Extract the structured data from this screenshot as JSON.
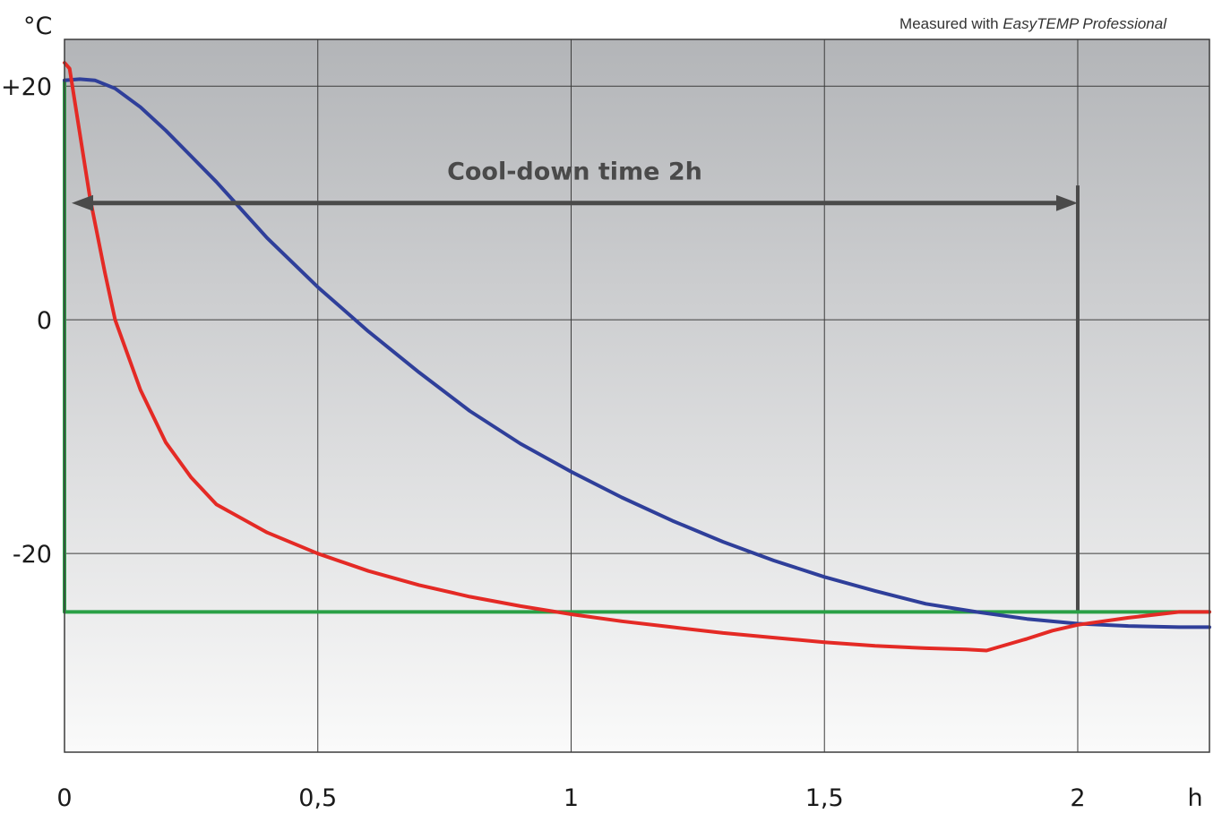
{
  "chart_data": {
    "type": "line",
    "x_unit": "h",
    "y_unit": "°C",
    "note": {
      "prefix": "Measured with ",
      "product": "EasyTEMP Professional"
    },
    "x_ticks": [
      {
        "value": 0,
        "label": "0"
      },
      {
        "value": 0.5,
        "label": "0,5"
      },
      {
        "value": 1,
        "label": "1"
      },
      {
        "value": 1.5,
        "label": "1,5"
      },
      {
        "value": 2,
        "label": "2"
      }
    ],
    "y_ticks": [
      {
        "value": 20,
        "label": "+20"
      },
      {
        "value": 0,
        "label": "0"
      },
      {
        "value": -20,
        "label": "-20"
      }
    ],
    "xlim": [
      0,
      2.26
    ],
    "ylim": [
      -37,
      24
    ],
    "grid": true,
    "annotation": {
      "text": "Cool-down time 2h",
      "x_start": 0,
      "x_end": 2,
      "y": 10
    },
    "marker_line": {
      "x": 2,
      "y_from": -25,
      "y_to": 11.5
    },
    "colors": {
      "background_top": "#b3b5b8",
      "background_bottom": "#fafafa",
      "grid": "#3c3c3c",
      "annotation": "#4a4a4a"
    },
    "series": [
      {
        "color": "#e42a25",
        "points": [
          [
            0,
            22
          ],
          [
            0.01,
            21.5
          ],
          [
            0.03,
            16
          ],
          [
            0.05,
            10.5
          ],
          [
            0.08,
            4
          ],
          [
            0.1,
            0
          ],
          [
            0.15,
            -6
          ],
          [
            0.2,
            -10.5
          ],
          [
            0.25,
            -13.5
          ],
          [
            0.3,
            -15.8
          ],
          [
            0.4,
            -18.2
          ],
          [
            0.5,
            -20
          ],
          [
            0.6,
            -21.5
          ],
          [
            0.7,
            -22.7
          ],
          [
            0.8,
            -23.7
          ],
          [
            0.9,
            -24.5
          ],
          [
            1.0,
            -25.2
          ],
          [
            1.1,
            -25.8
          ],
          [
            1.2,
            -26.3
          ],
          [
            1.3,
            -26.8
          ],
          [
            1.4,
            -27.2
          ],
          [
            1.5,
            -27.6
          ],
          [
            1.6,
            -27.9
          ],
          [
            1.7,
            -28.1
          ],
          [
            1.78,
            -28.2
          ],
          [
            1.82,
            -28.3
          ],
          [
            1.9,
            -27.3
          ],
          [
            1.95,
            -26.6
          ],
          [
            2.0,
            -26.1
          ],
          [
            2.1,
            -25.5
          ],
          [
            2.2,
            -25.0
          ],
          [
            2.26,
            -25.0
          ]
        ]
      },
      {
        "color": "#2f3f9a",
        "points": [
          [
            0,
            20.5
          ],
          [
            0.03,
            20.6
          ],
          [
            0.06,
            20.5
          ],
          [
            0.1,
            19.8
          ],
          [
            0.15,
            18.2
          ],
          [
            0.2,
            16.2
          ],
          [
            0.25,
            14
          ],
          [
            0.3,
            11.8
          ],
          [
            0.35,
            9.4
          ],
          [
            0.4,
            7.0
          ],
          [
            0.5,
            2.8
          ],
          [
            0.6,
            -1.0
          ],
          [
            0.7,
            -4.5
          ],
          [
            0.8,
            -7.8
          ],
          [
            0.9,
            -10.6
          ],
          [
            1.0,
            -13.0
          ],
          [
            1.1,
            -15.2
          ],
          [
            1.2,
            -17.2
          ],
          [
            1.3,
            -19.0
          ],
          [
            1.4,
            -20.6
          ],
          [
            1.5,
            -22.0
          ],
          [
            1.6,
            -23.2
          ],
          [
            1.7,
            -24.3
          ],
          [
            1.8,
            -25.0
          ],
          [
            1.9,
            -25.6
          ],
          [
            2.0,
            -26.0
          ],
          [
            2.1,
            -26.2
          ],
          [
            2.2,
            -26.3
          ],
          [
            2.26,
            -26.3
          ]
        ]
      },
      {
        "color": "#2aa046",
        "points": [
          [
            0,
            20.5
          ],
          [
            0,
            -25
          ],
          [
            2.26,
            -25
          ]
        ]
      }
    ]
  }
}
